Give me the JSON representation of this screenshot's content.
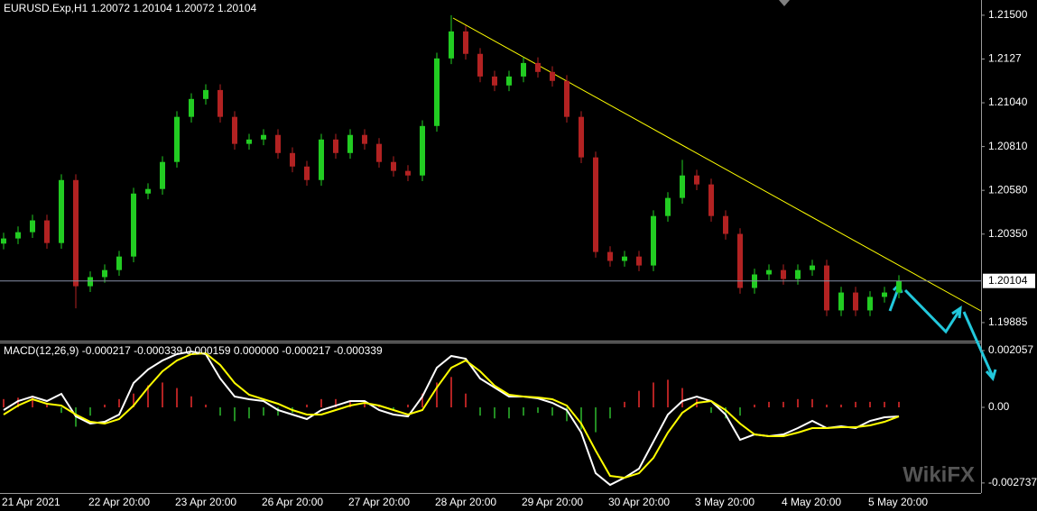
{
  "watermark": "WikiFX",
  "chart_data": [
    {
      "type": "candlestick",
      "title": "EURUSD.Exp,H1  1.20072 1.20104 1.20072 1.20104",
      "categories": [
        "21 Apr 2021",
        null,
        null,
        null,
        null,
        null,
        "22 Apr 20:00",
        null,
        null,
        null,
        null,
        null,
        "23 Apr 20:00",
        null,
        null,
        null,
        null,
        null,
        "26 Apr 20:00",
        null,
        null,
        null,
        null,
        null,
        "27 Apr 20:00",
        null,
        null,
        null,
        null,
        null,
        "28 Apr 20:00",
        null,
        null,
        null,
        null,
        null,
        "29 Apr 20:00",
        null,
        null,
        null,
        null,
        null,
        "30 Apr 20:00",
        null,
        null,
        null,
        null,
        null,
        "3 May 20:00",
        null,
        null,
        null,
        null,
        null,
        "4 May 20:00",
        null,
        null,
        null,
        null,
        null,
        "5 May 20:00",
        null,
        null
      ],
      "open": [
        1.203,
        1.20327,
        1.2036,
        1.20422,
        1.20303,
        1.20634,
        1.20076,
        1.20124,
        1.20161,
        1.20232,
        1.20563,
        1.20587,
        1.20729,
        1.20966,
        1.2106,
        1.21107,
        1.20966,
        1.20824,
        1.20847,
        1.20871,
        1.20776,
        1.20705,
        1.20634,
        1.20847,
        1.20776,
        1.20871,
        1.20824,
        1.20729,
        1.20682,
        1.20658,
        1.20918,
        1.21273,
        1.21415,
        1.21297,
        1.21178,
        1.21131,
        1.21178,
        1.21249,
        1.21202,
        1.21155,
        1.20966,
        1.20753,
        1.20256,
        1.20209,
        1.20232,
        1.20185,
        1.20445,
        1.2054,
        1.20658,
        1.20611,
        1.20445,
        1.20351,
        1.20067,
        1.20138,
        1.20161,
        1.20114,
        1.20161,
        1.20185,
        1.19949,
        1.20043,
        1.19949,
        1.2002,
        1.20043
      ],
      "high": [
        1.20357,
        1.2039,
        1.20452,
        1.20452,
        1.20664,
        1.20664,
        1.20154,
        1.20191,
        1.20262,
        1.20593,
        1.20617,
        1.20759,
        1.20996,
        1.2109,
        1.21137,
        1.21137,
        1.20996,
        1.20877,
        1.20901,
        1.20901,
        1.20806,
        1.20735,
        1.20877,
        1.20877,
        1.20901,
        1.20901,
        1.20854,
        1.20759,
        1.20712,
        1.20948,
        1.21303,
        1.215,
        1.21445,
        1.21327,
        1.21208,
        1.21208,
        1.21279,
        1.21279,
        1.21232,
        1.21185,
        1.20996,
        1.20783,
        1.20286,
        1.20262,
        1.20262,
        1.20475,
        1.2057,
        1.2074,
        1.20688,
        1.20641,
        1.20475,
        1.20381,
        1.20168,
        1.20191,
        1.20191,
        1.20191,
        1.20215,
        1.20215,
        1.20073,
        1.20073,
        1.2005,
        1.20073,
        1.20134
      ],
      "low": [
        1.2027,
        1.20297,
        1.2033,
        1.20273,
        1.20273,
        1.1996,
        1.20046,
        1.20094,
        1.20131,
        1.20202,
        1.20533,
        1.20557,
        1.20699,
        1.20936,
        1.2103,
        1.20936,
        1.20794,
        1.20794,
        1.20817,
        1.20746,
        1.20675,
        1.20604,
        1.20604,
        1.20746,
        1.20746,
        1.20794,
        1.20699,
        1.20652,
        1.20628,
        1.20628,
        1.20888,
        1.21243,
        1.21267,
        1.21148,
        1.21101,
        1.21101,
        1.21148,
        1.21172,
        1.21125,
        1.20936,
        1.20723,
        1.20226,
        1.20179,
        1.20179,
        1.20155,
        1.20155,
        1.20415,
        1.2051,
        1.20581,
        1.20415,
        1.20321,
        1.20037,
        1.20037,
        1.20108,
        1.20084,
        1.20084,
        1.20131,
        1.19919,
        1.19919,
        1.19919,
        1.19919,
        1.1999,
        1.20013
      ],
      "close": [
        1.20327,
        1.2036,
        1.20422,
        1.20303,
        1.20634,
        1.20076,
        1.20124,
        1.20161,
        1.20232,
        1.20563,
        1.20587,
        1.20729,
        1.20966,
        1.2106,
        1.21107,
        1.20966,
        1.20824,
        1.20847,
        1.20871,
        1.20776,
        1.20705,
        1.20634,
        1.20847,
        1.20776,
        1.20871,
        1.20824,
        1.20729,
        1.20682,
        1.20658,
        1.20918,
        1.21273,
        1.21415,
        1.21297,
        1.21178,
        1.21131,
        1.21178,
        1.21249,
        1.21202,
        1.21155,
        1.20966,
        1.20753,
        1.20256,
        1.20209,
        1.20232,
        1.20185,
        1.20445,
        1.2054,
        1.20658,
        1.20611,
        1.20445,
        1.20351,
        1.20067,
        1.20138,
        1.20161,
        1.20114,
        1.20161,
        1.20185,
        1.19949,
        1.20043,
        1.19949,
        1.2002,
        1.20043,
        1.20104
      ],
      "up_color": "#22cc22",
      "down_color": "#b22222",
      "current_price": 1.20104,
      "ylim": [
        1.1979,
        1.2158
      ],
      "yticks": [
        {
          "value": 1.215,
          "label": "1.21500"
        },
        1.2127,
        {
          "value": 1.2104,
          "label": "1.21040"
        },
        {
          "value": 1.2081,
          "label": "1.20810"
        },
        {
          "value": 1.2058,
          "label": "1.20580"
        },
        {
          "value": 1.2035,
          "label": "1.20350"
        },
        1.19885
      ]
    },
    {
      "type": "macd",
      "title": "MACD(12,26,9) -0.000217 -0.000339 0.000159 0.000000 -0.000217 -0.000339",
      "series": [
        {
          "color": "#ffffff",
          "values": [
            -9.8e-05,
            0.000229,
            0.000392,
            0.000229,
            0.00049,
            -0.000327,
            -0.000588,
            -0.000522,
            -0.000261,
            0.000882,
            0.001371,
            0.001698,
            0.001926,
            0.002024,
            0.001926,
            0.001045,
            0.000392,
            0.000294,
            0.000229,
            -9.8e-05,
            -0.000261,
            -0.000424,
            -9.8e-05,
            6.5e-05,
            0.000229,
            0.000229,
            -9.8e-05,
            -0.000261,
            -0.000327,
            0.000392,
            0.001437,
            0.001861,
            0.001763,
            0.001045,
            0.000718,
            0.000392,
            0.000392,
            0.000327,
            0.000163,
            -9.8e-05,
            -0.000914,
            -0.002384,
            -0.002808,
            -0.002547,
            -0.00222,
            -0.001241,
            -0.000261,
            0.000229,
            0.000392,
            0.000229,
            -0.000261,
            -0.001175,
            -0.00098,
            -0.001045,
            -0.00098,
            -0.000751,
            -0.00049,
            -0.000751,
            -0.000686,
            -0.000751,
            -0.00049,
            -0.000359,
            -0.000327
          ]
        },
        {
          "color": "#ffff00",
          "values": [
            -0.000261,
            6.5e-05,
            0.000294,
            0.000131,
            6.5e-05,
            -0.000261,
            -0.000522,
            -0.000588,
            -0.000424,
            6.5e-05,
            0.000718,
            0.001306,
            0.001698,
            0.001926,
            0.001959,
            0.001535,
            0.000882,
            0.000457,
            0.000294,
            0.000131,
            -9.8e-05,
            -0.000261,
            -0.000261,
            -9.8e-05,
            6.5e-05,
            0.000163,
            6.5e-05,
            -9.8e-05,
            -0.000261,
            -9.8e-05,
            0.000718,
            0.001437,
            0.001698,
            0.001306,
            0.000784,
            0.000457,
            0.000392,
            0.000359,
            0.000294,
            6.5e-05,
            -0.000588,
            -0.001567,
            -0.002481,
            -0.002547,
            -0.002384,
            -0.001828,
            -0.000914,
            -0.000196,
            0.000163,
            0.000229,
            -9.8e-05,
            -0.000588,
            -0.00098,
            -0.001045,
            -0.001045,
            -0.000914,
            -0.000751,
            -0.000751,
            -0.000718,
            -0.000718,
            -0.000653,
            -0.000522,
            -0.000327
          ]
        }
      ],
      "histogram": {
        "up_color": "#b22222",
        "down_color": "#228b22",
        "values": [
          0.0003,
          0.00035,
          0.0004,
          0.0001,
          -0.0002,
          -0.0007,
          -0.0003,
          0.0001,
          0.0003,
          0.0005,
          0.0008,
          0.0009,
          0.0007,
          0.0004,
          0.0001,
          -0.0003,
          -0.0005,
          -0.0004,
          -0.0003,
          -0.0003,
          -0.0002,
          0.0001,
          0.0003,
          0.0003,
          0.0002,
          0.0002,
          0.0001,
          -0.0001,
          0.0001,
          0.0005,
          0.0009,
          0.0011,
          0.0005,
          -0.0003,
          -0.0004,
          -0.0004,
          -0.0003,
          -0.0002,
          -0.0003,
          -0.0005,
          -0.0008,
          -0.0009,
          -0.0004,
          0.0002,
          0.0006,
          0.0009,
          0.001,
          0.0007,
          0.0003,
          -0.0002,
          -0.0004,
          -0.0003,
          0.0001,
          0.0002,
          0.0002,
          0.0003,
          0.0003,
          0.0001,
          0.0001,
          0.0002,
          0.0002,
          0.0002,
          0.0002
        ]
      },
      "ylim": [
        -0.0031,
        0.00235
      ],
      "yticks": [
        0.002057,
        {
          "value": 0,
          "label": "0.00"
        },
        -0.002737
      ]
    }
  ]
}
